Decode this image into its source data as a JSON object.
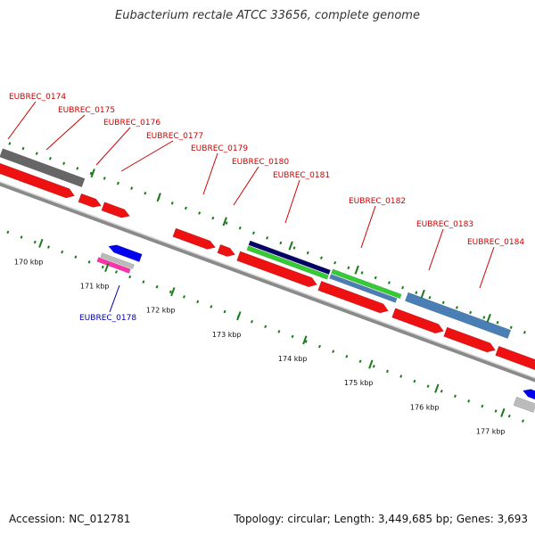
{
  "title": "Eubacterium rectale ATCC 33656, complete genome",
  "footer": {
    "accession": "Accession: NC_012781",
    "stats": "Topology: circular; Length: 3,449,685 bp; Genes: 3,693"
  },
  "colors": {
    "cds": "#ee1111",
    "cds_label": "#cc0000",
    "rev_label": "#0000aa",
    "tick": "#1a7a1a",
    "backbone": "#8a8a8a",
    "gray_feature": "#666666",
    "navy": "#000066",
    "green": "#33cc33",
    "steelblue": "#4a7fb5",
    "blue": "#0000ee",
    "magenta": "#ff33aa"
  },
  "ticks": [
    "170 kbp",
    "171 kbp",
    "172 kbp",
    "173 kbp",
    "174 kbp",
    "175 kbp",
    "176 kbp",
    "177 kbp"
  ],
  "gene_labels": [
    {
      "text": "EUBREC_0174",
      "strand": "forward"
    },
    {
      "text": "EUBREC_0175",
      "strand": "forward"
    },
    {
      "text": "EUBREC_0176",
      "strand": "forward"
    },
    {
      "text": "EUBREC_0177",
      "strand": "forward"
    },
    {
      "text": "EUBREC_0179",
      "strand": "forward"
    },
    {
      "text": "EUBREC_0180",
      "strand": "forward"
    },
    {
      "text": "EUBREC_0181",
      "strand": "forward"
    },
    {
      "text": "EUBREC_0182",
      "strand": "forward"
    },
    {
      "text": "EUBREC_0183",
      "strand": "forward"
    },
    {
      "text": "EUBREC_0184",
      "strand": "forward"
    },
    {
      "text": "EUBREC_0178",
      "strand": "reverse"
    }
  ]
}
